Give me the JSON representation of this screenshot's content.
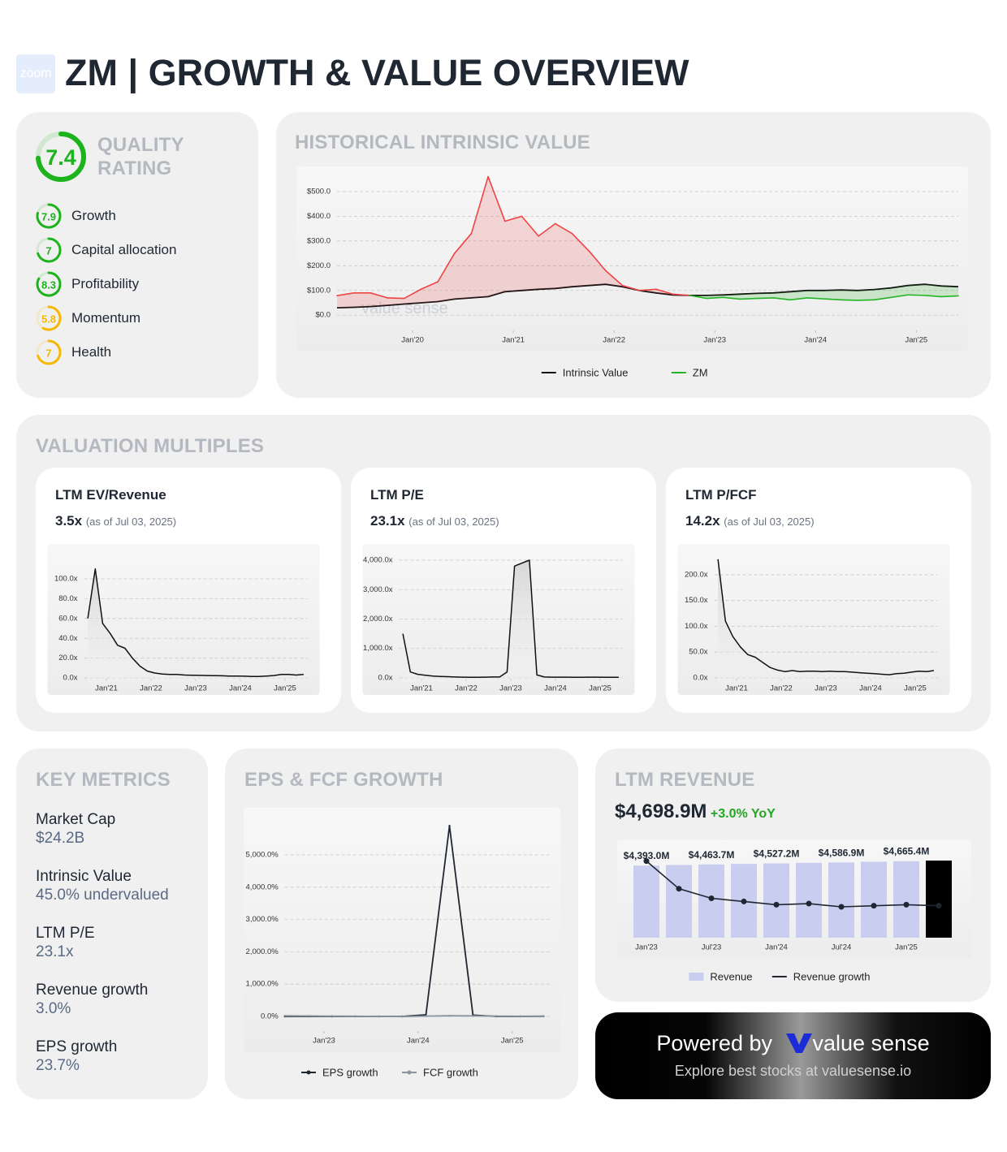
{
  "header": {
    "logo": "zoom",
    "title": "ZM | GROWTH & VALUE OVERVIEW"
  },
  "quality": {
    "title": "QUALITY RATING",
    "score": 7.4,
    "color": "#1db31d",
    "range": [
      0,
      10
    ],
    "items": [
      {
        "label": "Growth",
        "score": 7.9,
        "color": "#1db31d"
      },
      {
        "label": "Capital allocation",
        "score": 7.0,
        "color": "#1db31d"
      },
      {
        "label": "Profitability",
        "score": 8.3,
        "color": "#1db31d"
      },
      {
        "label": "Momentum",
        "score": 5.8,
        "color": "#f5b800"
      },
      {
        "label": "Health",
        "score": 7.0,
        "color": "#f5b800"
      }
    ]
  },
  "intrinsic_value": {
    "title": "HISTORICAL INTRINSIC VALUE",
    "chart": {
      "type": "line",
      "watermark": "value sense",
      "x": [
        "2019-04",
        "2019-06",
        "2019-08",
        "2019-10",
        "2019-12",
        "2020-02",
        "2020-04",
        "2020-06",
        "2020-08",
        "2020-10",
        "2020-12",
        "2021-02",
        "2021-04",
        "2021-06",
        "2021-08",
        "2021-10",
        "2021-12",
        "2022-02",
        "2022-04",
        "2022-06",
        "2022-08",
        "2022-10",
        "2022-12",
        "2023-02",
        "2023-04",
        "2023-06",
        "2023-08",
        "2023-10",
        "2023-12",
        "2024-02",
        "2024-04",
        "2024-06",
        "2024-08",
        "2024-10",
        "2024-12",
        "2025-02",
        "2025-04",
        "2025-06"
      ],
      "xlim": [
        "2019-04",
        "2025-06"
      ],
      "xticks": [
        {
          "value": "2020-01",
          "label": "Jan'20"
        },
        {
          "value": "2021-01",
          "label": "Jan'21"
        },
        {
          "value": "2022-01",
          "label": "Jan'22"
        },
        {
          "value": "2023-01",
          "label": "Jan'23"
        },
        {
          "value": "2024-01",
          "label": "Jan'24"
        },
        {
          "value": "2025-01",
          "label": "Jan'25"
        }
      ],
      "ylim": [
        -55,
        585
      ],
      "yticks": [
        {
          "value": 0,
          "label": "$0.0"
        },
        {
          "value": 100,
          "label": "$100.0"
        },
        {
          "value": 200,
          "label": "$200.0"
        },
        {
          "value": 300,
          "label": "$300.0"
        },
        {
          "value": 400,
          "label": "$400.0"
        },
        {
          "value": 500,
          "label": "$500.0"
        }
      ],
      "grid": true,
      "legend": "bottom",
      "series": [
        {
          "name": "Intrinsic Value",
          "color": "#111111",
          "values": [
            30,
            32,
            35,
            40,
            45,
            50,
            55,
            65,
            70,
            75,
            95,
            100,
            105,
            108,
            115,
            120,
            125,
            115,
            100,
            90,
            82,
            80,
            80,
            82,
            85,
            88,
            90,
            95,
            100,
            100,
            102,
            100,
            104,
            110,
            120,
            125,
            118,
            115
          ]
        },
        {
          "name": "ZM",
          "color": "#22b422",
          "above_color": "#ef4444",
          "values": [
            79,
            90,
            90,
            70,
            68,
            105,
            135,
            250,
            330,
            560,
            380,
            400,
            320,
            370,
            330,
            260,
            180,
            120,
            100,
            105,
            85,
            80,
            68,
            72,
            65,
            68,
            70,
            62,
            70,
            66,
            62,
            60,
            62,
            72,
            82,
            80,
            75,
            78
          ]
        }
      ]
    }
  },
  "valuation_multiples": {
    "title": "VALUATION MULTIPLES",
    "cards": [
      {
        "title": "LTM EV/Revenue",
        "value": "3.5x",
        "note": "(as of Jul 03, 2025)",
        "chart": {
          "type": "area",
          "x": [
            "2020-08",
            "2020-10",
            "2020-12",
            "2021-02",
            "2021-04",
            "2021-06",
            "2021-08",
            "2021-10",
            "2021-12",
            "2022-02",
            "2022-04",
            "2022-06",
            "2022-08",
            "2022-10",
            "2022-12",
            "2023-02",
            "2023-04",
            "2023-06",
            "2023-08",
            "2023-10",
            "2023-12",
            "2024-02",
            "2024-04",
            "2024-06",
            "2024-08",
            "2024-10",
            "2024-12",
            "2025-02",
            "2025-04",
            "2025-06"
          ],
          "xlim": [
            "2020-07",
            "2025-07"
          ],
          "xticks": [
            {
              "value": "2021-01",
              "label": "Jan'21"
            },
            {
              "value": "2022-01",
              "label": "Jan'22"
            },
            {
              "value": "2023-01",
              "label": "Jan'23"
            },
            {
              "value": "2024-01",
              "label": "Jan'24"
            },
            {
              "value": "2025-01",
              "label": "Jan'25"
            }
          ],
          "ylim": [
            -4,
            127
          ],
          "yticks": [
            {
              "value": 0,
              "label": "0.0x"
            },
            {
              "value": 20,
              "label": "20.0x"
            },
            {
              "value": 40,
              "label": "40.0x"
            },
            {
              "value": 60,
              "label": "60.0x"
            },
            {
              "value": 80,
              "label": "80.0x"
            },
            {
              "value": 100,
              "label": "100.0x"
            }
          ],
          "grid": true,
          "series": [
            {
              "name": "LTM EV/Revenue",
              "color": "#111111",
              "values": [
                60,
                110,
                55,
                45,
                33,
                30,
                20,
                12,
                7,
                5,
                4,
                3.5,
                3.5,
                3,
                2.8,
                2.6,
                2.5,
                2.4,
                2.2,
                2,
                2,
                1.8,
                1.5,
                1.6,
                2,
                2.5,
                3.5,
                3.5,
                3,
                3.5
              ]
            }
          ]
        }
      },
      {
        "title": "LTM P/E",
        "value": "23.1x",
        "note": "(as of Jul 03, 2025)",
        "chart": {
          "type": "area",
          "x": [
            "2020-08",
            "2020-10",
            "2020-12",
            "2021-02",
            "2021-04",
            "2021-06",
            "2021-08",
            "2021-10",
            "2021-12",
            "2022-02",
            "2022-04",
            "2022-06",
            "2022-08",
            "2022-10",
            "2022-12",
            "2023-02",
            "2023-04",
            "2023-06",
            "2023-08",
            "2023-10",
            "2023-12",
            "2024-02",
            "2024-04",
            "2024-06",
            "2024-08",
            "2024-10",
            "2024-12",
            "2025-02",
            "2025-04",
            "2025-06"
          ],
          "xlim": [
            "2020-07",
            "2025-07"
          ],
          "xticks": [
            {
              "value": "2021-01",
              "label": "Jan'21"
            },
            {
              "value": "2022-01",
              "label": "Jan'22"
            },
            {
              "value": "2023-01",
              "label": "Jan'23"
            },
            {
              "value": "2024-01",
              "label": "Jan'24"
            },
            {
              "value": "2025-01",
              "label": "Jan'25"
            }
          ],
          "ylim": [
            -138,
            4276
          ],
          "yticks": [
            {
              "value": 0,
              "label": "0.0x"
            },
            {
              "value": 1000,
              "label": "1,000.0x"
            },
            {
              "value": 2000,
              "label": "2,000.0x"
            },
            {
              "value": 3000,
              "label": "3,000.0x"
            },
            {
              "value": 4000,
              "label": "4,000.0x"
            }
          ],
          "grid": true,
          "series": [
            {
              "name": "LTM P/E",
              "color": "#111111",
              "values": [
                1500,
                200,
                120,
                90,
                60,
                50,
                40,
                30,
                25,
                20,
                20,
                25,
                30,
                30,
                200,
                3800,
                3900,
                4000,
                100,
                30,
                25,
                25,
                25,
                23,
                23,
                24,
                24,
                23,
                23,
                23
              ]
            }
          ]
        }
      },
      {
        "title": "LTM P/FCF",
        "value": "14.2x",
        "note": "(as of Jul 03, 2025)",
        "chart": {
          "type": "area",
          "x": [
            "2020-08",
            "2020-10",
            "2020-12",
            "2021-02",
            "2021-04",
            "2021-06",
            "2021-08",
            "2021-10",
            "2021-12",
            "2022-02",
            "2022-04",
            "2022-06",
            "2022-08",
            "2022-10",
            "2022-12",
            "2023-02",
            "2023-04",
            "2023-06",
            "2023-08",
            "2023-10",
            "2023-12",
            "2024-02",
            "2024-04",
            "2024-06",
            "2024-08",
            "2024-10",
            "2024-12",
            "2025-02",
            "2025-04",
            "2025-06"
          ],
          "xlim": [
            "2020-07",
            "2025-07"
          ],
          "xticks": [
            {
              "value": "2021-01",
              "label": "Jan'21"
            },
            {
              "value": "2022-01",
              "label": "Jan'22"
            },
            {
              "value": "2023-01",
              "label": "Jan'23"
            },
            {
              "value": "2024-01",
              "label": "Jan'24"
            },
            {
              "value": "2025-01",
              "label": "Jan'25"
            }
          ],
          "ylim": [
            -8,
            244
          ],
          "yticks": [
            {
              "value": 0,
              "label": "0.0x"
            },
            {
              "value": 50,
              "label": "50.0x"
            },
            {
              "value": 100,
              "label": "100.0x"
            },
            {
              "value": 150,
              "label": "150.0x"
            },
            {
              "value": 200,
              "label": "200.0x"
            }
          ],
          "grid": true,
          "series": [
            {
              "name": "LTM P/FCF",
              "color": "#111111",
              "values": [
                230,
                110,
                80,
                60,
                45,
                40,
                30,
                20,
                15,
                12,
                14,
                12,
                13,
                13,
                12,
                13,
                12,
                12,
                11,
                10,
                9,
                8,
                7,
                6,
                8,
                9,
                11,
                13,
                12,
                14
              ]
            }
          ]
        }
      }
    ]
  },
  "key_metrics": {
    "title": "KEY METRICS",
    "items": [
      {
        "label": "Market Cap",
        "value": "$24.2B"
      },
      {
        "label": "Intrinsic Value",
        "value": "45.0% undervalued"
      },
      {
        "label": "LTM P/E",
        "value": "23.1x"
      },
      {
        "label": "Revenue growth",
        "value": "3.0%"
      },
      {
        "label": "EPS growth",
        "value": "23.7%"
      }
    ]
  },
  "eps_fcf_growth": {
    "title": "EPS & FCF GROWTH",
    "chart": {
      "type": "line",
      "x": [
        "2022-08",
        "2022-11",
        "2023-02",
        "2023-05",
        "2023-08",
        "2023-11",
        "2024-02",
        "2024-05",
        "2024-08",
        "2024-11",
        "2025-02",
        "2025-05"
      ],
      "xlim": [
        "2022-08",
        "2025-06"
      ],
      "xticks": [
        {
          "value": "2023-01",
          "label": "Jan'23"
        },
        {
          "value": "2024-01",
          "label": "Jan'24"
        },
        {
          "value": "2025-01",
          "label": "Jan'25"
        }
      ],
      "ylim": [
        -955,
        6332
      ],
      "yticks": [
        {
          "value": 0,
          "label": "0.0%"
        },
        {
          "value": 1000,
          "label": "1,000.0%"
        },
        {
          "value": 2000,
          "label": "2,000.0%"
        },
        {
          "value": 3000,
          "label": "3,000.0%"
        },
        {
          "value": 4000,
          "label": "4,000.0%"
        },
        {
          "value": 5000,
          "label": "5,000.0%"
        }
      ],
      "grid": true,
      "legend": "bottom",
      "series": [
        {
          "name": "EPS growth",
          "color": "#1f2733",
          "marker": true,
          "values": [
            0,
            0,
            0,
            0,
            0,
            0,
            50,
            5900,
            40,
            0,
            0,
            5
          ]
        },
        {
          "name": "FCF growth",
          "color": "#8a939e",
          "marker": true,
          "values": [
            20,
            15,
            10,
            5,
            0,
            -5,
            10,
            20,
            15,
            10,
            5,
            10
          ]
        }
      ]
    }
  },
  "ltm_revenue": {
    "title": "LTM REVENUE",
    "value": "$4,698.9M",
    "change": "+3.0% YoY",
    "chart": {
      "type": "bar",
      "categories": [
        "Jan'23",
        null,
        "Jul'23",
        null,
        "Jan'24",
        null,
        "Jul'24",
        null,
        "Jan'25",
        null
      ],
      "ylim": [
        0,
        4800
      ],
      "y2lim": [
        0,
        7.4
      ],
      "legend": "bottom",
      "series": [
        {
          "name": "Revenue",
          "type": "bar",
          "colors": [
            "#c9cdf0",
            "#c9cdf0",
            "#c9cdf0",
            "#c9cdf0",
            "#c9cdf0",
            "#c9cdf0",
            "#c9cdf0",
            "#c9cdf0",
            "#c9cdf0",
            "#000000"
          ],
          "values": [
            4393.0,
            4431.0,
            4463.7,
            4497.0,
            4527.2,
            4560.0,
            4586.9,
            4628.0,
            4665.4,
            4698.9
          ],
          "value_labels": [
            "$4,393.0M",
            null,
            "$4,463.7M",
            null,
            "$4,527.2M",
            null,
            "$4,586.9M",
            null,
            "$4,665.4M",
            null
          ]
        },
        {
          "name": "Revenue growth",
          "type": "line",
          "axis": "y2",
          "color": "#1f2733",
          "values": [
            7.2,
            4.6,
            3.7,
            3.4,
            3.1,
            3.2,
            2.9,
            3.0,
            3.1,
            3.0
          ]
        }
      ]
    }
  },
  "footer": {
    "powered": "Powered by",
    "brand": "value sense",
    "tagline": "Explore best stocks at valuesense.io"
  }
}
